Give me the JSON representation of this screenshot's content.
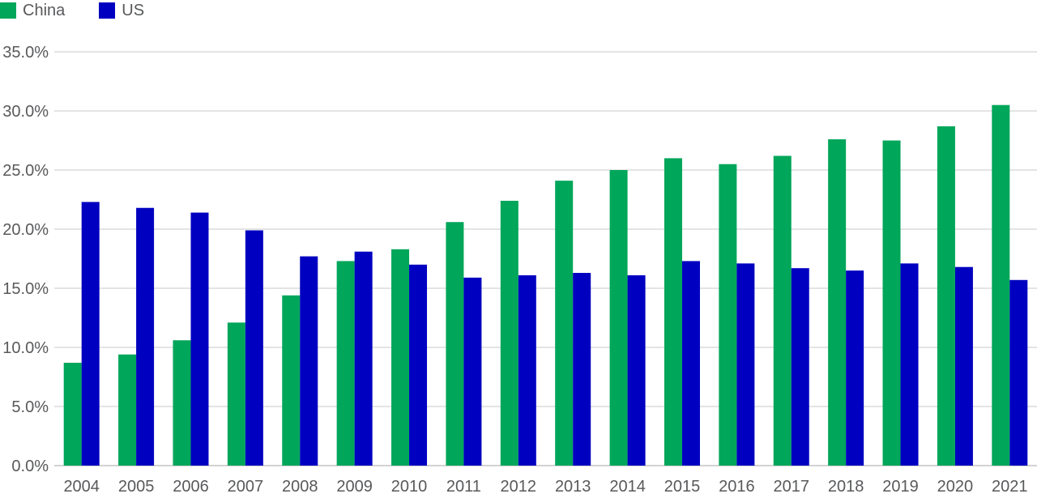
{
  "chart_data": {
    "type": "bar",
    "categories": [
      "2004",
      "2005",
      "2006",
      "2007",
      "2008",
      "2009",
      "2010",
      "2011",
      "2012",
      "2013",
      "2014",
      "2015",
      "2016",
      "2017",
      "2018",
      "2019",
      "2020",
      "2021"
    ],
    "series": [
      {
        "name": "China",
        "color": "#00a65a",
        "values": [
          8.7,
          9.4,
          10.6,
          12.1,
          14.4,
          17.3,
          18.3,
          20.6,
          22.4,
          24.1,
          25.0,
          26.0,
          25.5,
          26.2,
          27.6,
          27.5,
          28.7,
          30.5
        ]
      },
      {
        "name": "US",
        "color": "#0000c0",
        "values": [
          22.3,
          21.8,
          21.4,
          19.9,
          17.7,
          18.1,
          17.0,
          15.9,
          16.1,
          16.3,
          16.1,
          17.3,
          17.1,
          16.7,
          16.5,
          17.1,
          16.8,
          15.7
        ]
      }
    ],
    "y_ticks": [
      "0.0%",
      "5.0%",
      "10.0%",
      "15.0%",
      "20.0%",
      "25.0%",
      "30.0%",
      "35.0%"
    ],
    "ylim": [
      0,
      35
    ],
    "ytick_step": 5,
    "grid": true,
    "legend_position": "top-left",
    "title": "",
    "xlabel": "",
    "ylabel": ""
  }
}
